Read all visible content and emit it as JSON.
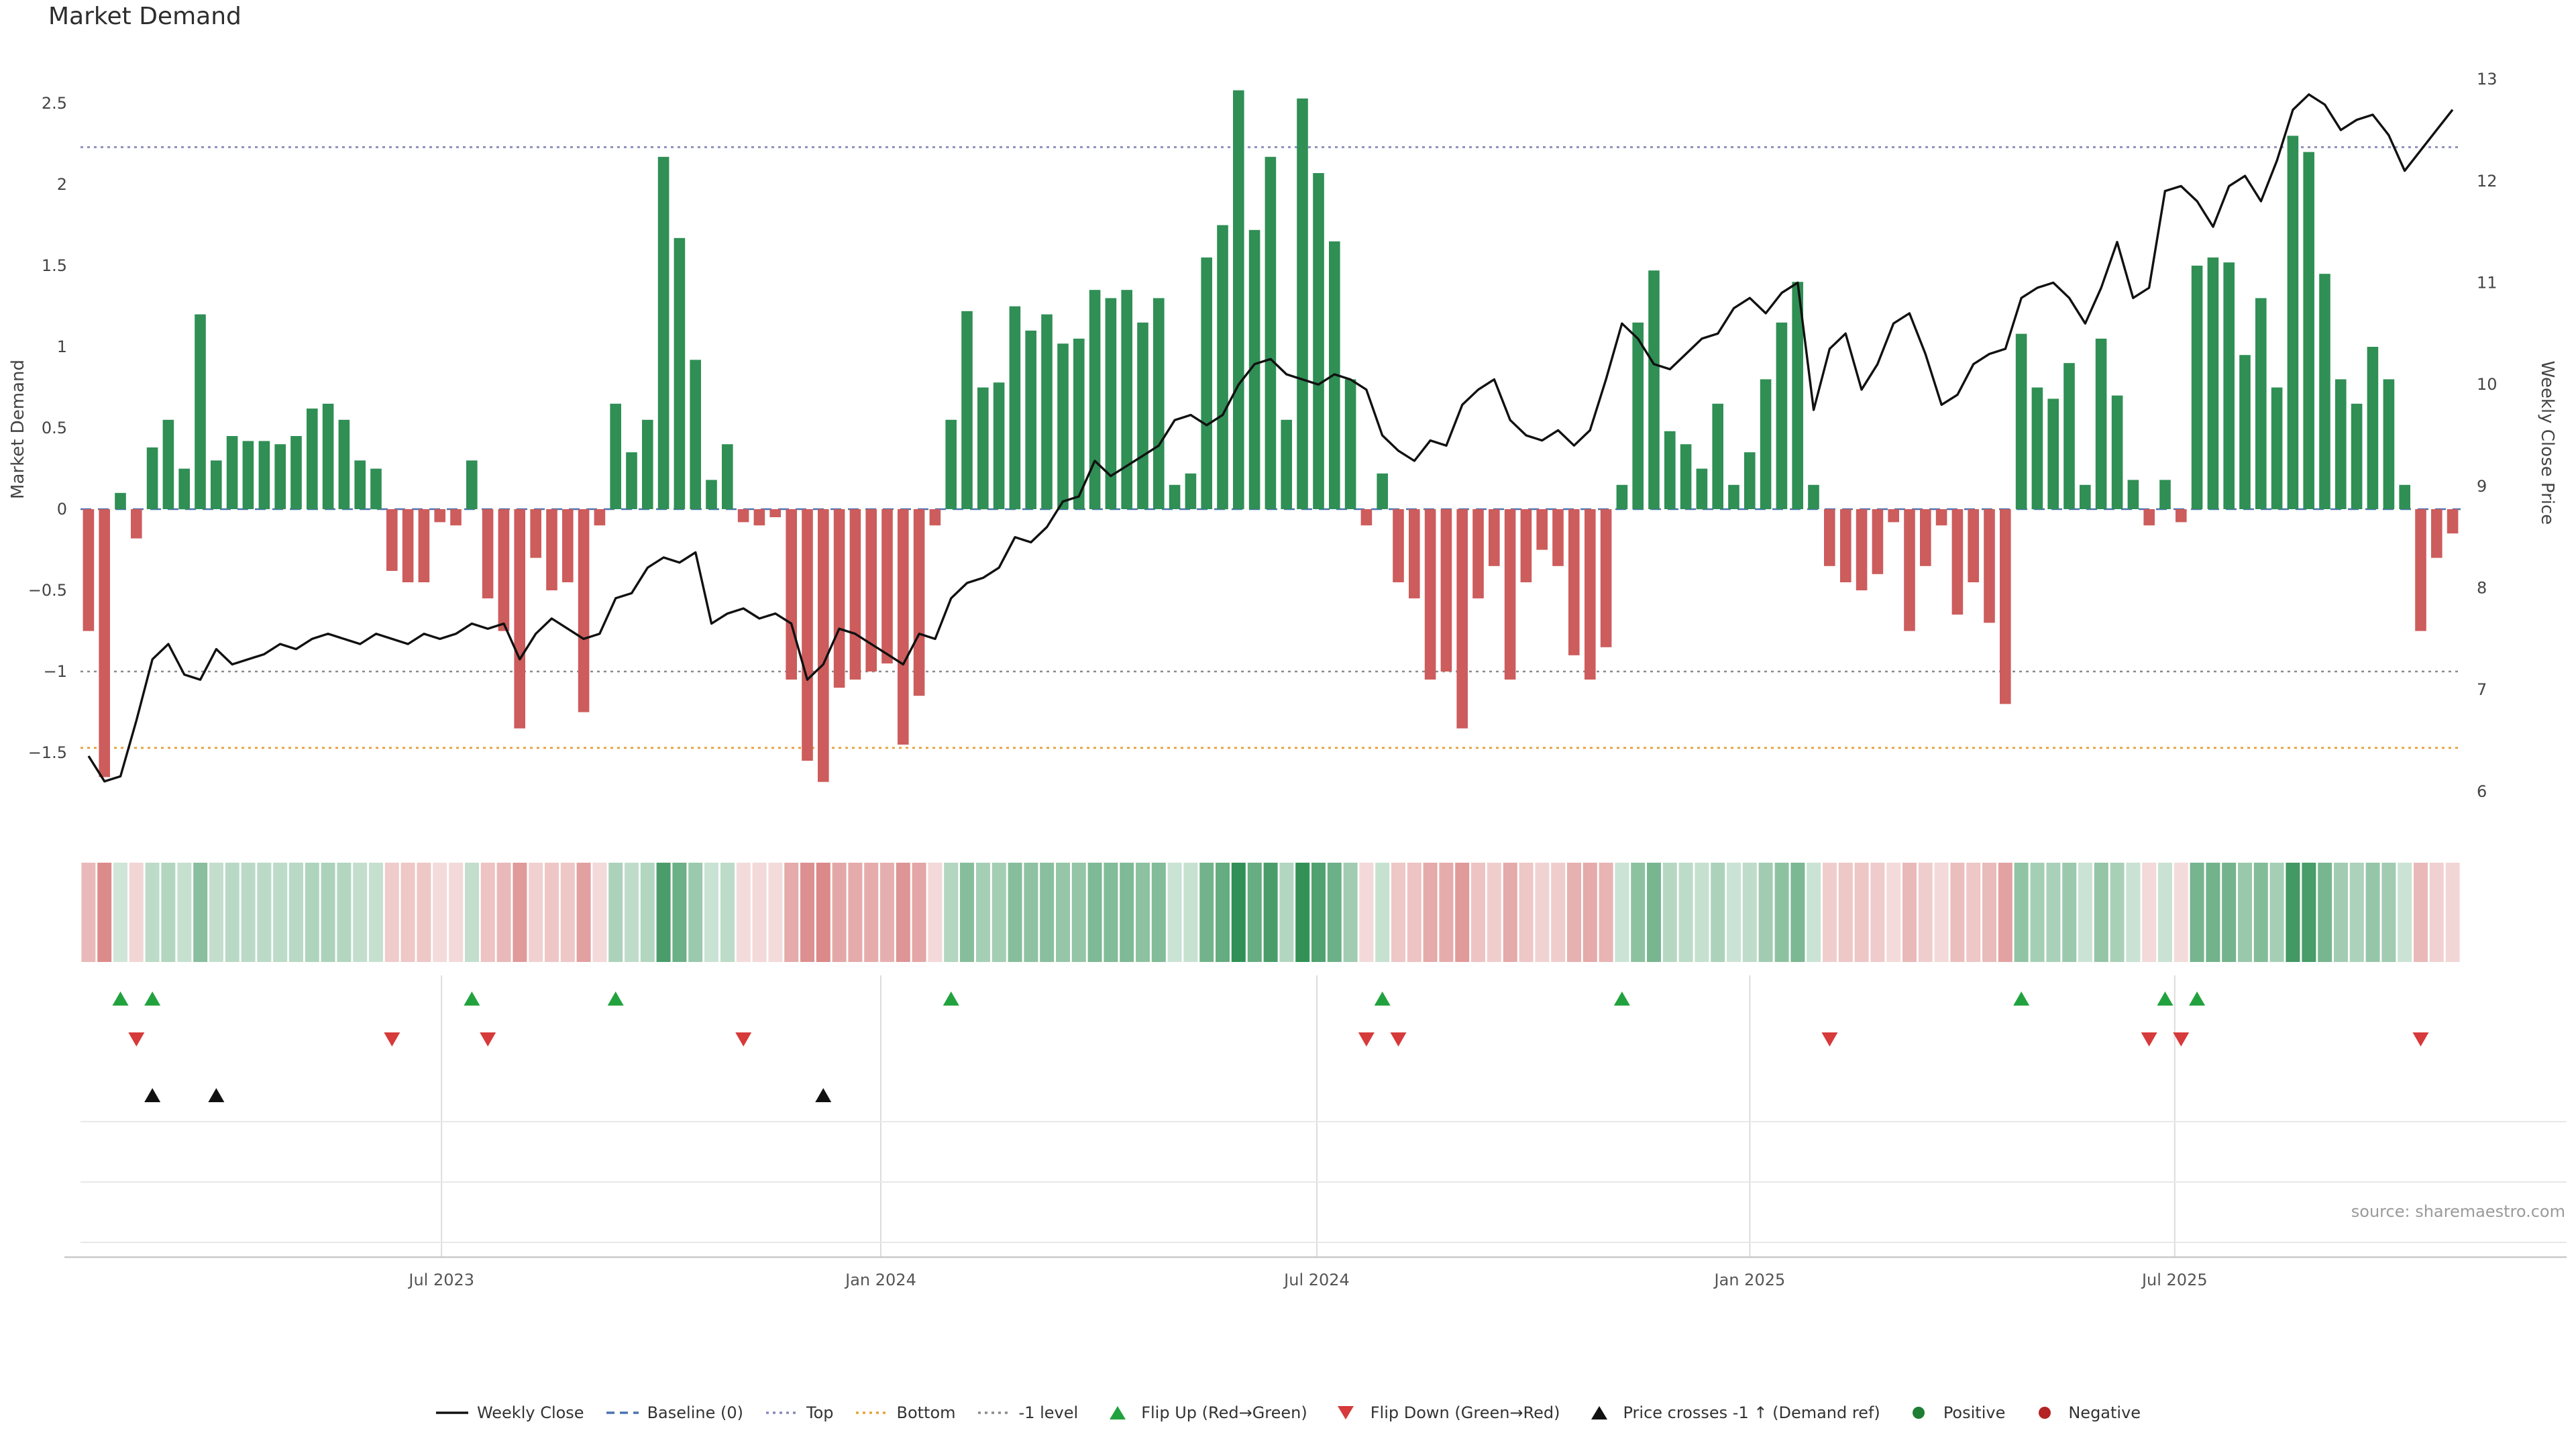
{
  "page": {
    "title": "Market Demand",
    "source": "source: sharemaestro.com"
  },
  "chart_data": {
    "type": "bar+line",
    "title": "Market Demand",
    "ylabel_left": "Market Demand",
    "ylabel_right": "Weekly Close Price",
    "x_unit": "week-index",
    "ylim_left": [
      -1.75,
      2.7
    ],
    "ylim_right": [
      5.95,
      13.1
    ],
    "yticks_left": [
      2.5,
      2,
      1.5,
      1,
      0.5,
      0,
      -0.5,
      -1,
      -1.5
    ],
    "yticks_right": [
      13,
      12,
      11,
      10,
      9,
      8,
      7,
      6
    ],
    "x_ticks": [
      {
        "label": "Jul 2023",
        "week": 22.1
      },
      {
        "label": "Jan 2024",
        "week": 49.6
      },
      {
        "label": "Jul 2024",
        "week": 76.9
      },
      {
        "label": "Jan 2025",
        "week": 104
      },
      {
        "label": "Jul 2025",
        "week": 130.6
      }
    ],
    "reference_lines": {
      "baseline": 0,
      "top": 2.23,
      "bottom": -1.47,
      "minus_one_level": -1
    },
    "layout_hints": {
      "legend_position": "bottom",
      "grid": "lower-panel-only",
      "heatmap_strip": true
    },
    "series": [
      {
        "name": "Market Demand",
        "type": "bar",
        "values": [
          -0.75,
          -1.65,
          0.1,
          -0.18,
          0.38,
          0.55,
          0.25,
          1.2,
          0.3,
          0.45,
          0.42,
          0.42,
          0.4,
          0.45,
          0.62,
          0.65,
          0.55,
          0.3,
          0.25,
          -0.38,
          -0.45,
          -0.45,
          -0.08,
          -0.1,
          0.3,
          -0.55,
          -0.75,
          -1.35,
          -0.3,
          -0.5,
          -0.45,
          -1.25,
          -0.1,
          0.65,
          0.35,
          0.55,
          2.17,
          1.67,
          0.92,
          0.18,
          0.4,
          -0.08,
          -0.1,
          -0.05,
          -1.05,
          -1.55,
          -1.68,
          -1.1,
          -1.05,
          -1.0,
          -0.95,
          -1.45,
          -1.15,
          -0.1,
          0.55,
          1.22,
          0.75,
          0.78,
          1.25,
          1.1,
          1.2,
          1.02,
          1.05,
          1.35,
          1.3,
          1.35,
          1.15,
          1.3,
          0.15,
          0.22,
          1.55,
          1.75,
          2.58,
          1.72,
          2.17,
          0.55,
          2.53,
          2.07,
          1.65,
          0.8,
          -0.1,
          0.22,
          -0.45,
          -0.55,
          -1.05,
          -1.0,
          -1.35,
          -0.55,
          -0.35,
          -1.05,
          -0.45,
          -0.25,
          -0.35,
          -0.9,
          -1.05,
          -0.85,
          0.15,
          1.15,
          1.47,
          0.48,
          0.4,
          0.25,
          0.65,
          0.15,
          0.35,
          0.8,
          1.15,
          1.4,
          0.15,
          -0.35,
          -0.45,
          -0.5,
          -0.4,
          -0.08,
          -0.75,
          -0.35,
          -0.1,
          -0.65,
          -0.45,
          -0.7,
          -1.2,
          1.08,
          0.75,
          0.68,
          0.9,
          0.15,
          1.05,
          0.7,
          0.18,
          -0.1,
          0.18,
          -0.08,
          1.5,
          1.55,
          1.52,
          0.95,
          1.3,
          0.75,
          2.3,
          2.2,
          1.45,
          0.8,
          0.65,
          1.0,
          0.8,
          0.15,
          -0.75,
          -0.3,
          -0.15
        ]
      },
      {
        "name": "Weekly Close",
        "type": "line",
        "values": [
          6.35,
          6.1,
          6.15,
          6.7,
          7.3,
          7.45,
          7.15,
          7.1,
          7.4,
          7.25,
          7.3,
          7.35,
          7.45,
          7.4,
          7.5,
          7.55,
          7.5,
          7.45,
          7.55,
          7.5,
          7.45,
          7.55,
          7.5,
          7.55,
          7.65,
          7.6,
          7.65,
          7.3,
          7.55,
          7.7,
          7.6,
          7.5,
          7.55,
          7.9,
          7.95,
          8.2,
          8.3,
          8.25,
          8.35,
          7.65,
          7.75,
          7.8,
          7.7,
          7.75,
          7.65,
          7.1,
          7.25,
          7.6,
          7.55,
          7.45,
          7.35,
          7.25,
          7.55,
          7.5,
          7.9,
          8.05,
          8.1,
          8.2,
          8.5,
          8.45,
          8.6,
          8.85,
          8.9,
          9.25,
          9.1,
          9.2,
          9.3,
          9.4,
          9.65,
          9.7,
          9.6,
          9.7,
          10.0,
          10.2,
          10.25,
          10.1,
          10.05,
          10.0,
          10.1,
          10.05,
          9.95,
          9.5,
          9.35,
          9.25,
          9.45,
          9.4,
          9.8,
          9.95,
          10.05,
          9.65,
          9.5,
          9.45,
          9.55,
          9.4,
          9.55,
          10.05,
          10.6,
          10.45,
          10.2,
          10.15,
          10.3,
          10.45,
          10.5,
          10.75,
          10.85,
          10.7,
          10.9,
          11.0,
          9.75,
          10.35,
          10.5,
          9.95,
          10.2,
          10.6,
          10.7,
          10.3,
          9.8,
          9.9,
          10.2,
          10.3,
          10.35,
          10.85,
          10.95,
          11.0,
          10.85,
          10.6,
          10.95,
          11.4,
          10.85,
          10.95,
          11.9,
          11.95,
          11.8,
          11.55,
          11.95,
          12.05,
          11.8,
          12.2,
          12.7,
          12.85,
          12.75,
          12.5,
          12.6,
          12.65,
          12.45,
          12.1,
          12.3,
          12.5,
          12.7
        ]
      }
    ],
    "colors": {
      "positive": "#2f8f54",
      "negative": "#cd5c5c",
      "price_line": "#111111",
      "baseline": "#4c72b0",
      "top": "#8888bb",
      "bottom": "#e5a23c",
      "minus_one": "#8a8a8a",
      "flip_up": "#22a23f",
      "flip_down": "#d63a3a",
      "price_cross": "#111111"
    }
  },
  "legend": {
    "items": [
      {
        "slug": "weekly-close",
        "label": "Weekly Close",
        "type": "line",
        "color": "#111111",
        "dash": ""
      },
      {
        "slug": "baseline",
        "label": "Baseline (0)",
        "type": "line",
        "color": "#4c72b0",
        "dash": "6,4"
      },
      {
        "slug": "top",
        "label": "Top",
        "type": "line",
        "color": "#8888bb",
        "dash": "2,3"
      },
      {
        "slug": "bottom",
        "label": "Bottom",
        "type": "line",
        "color": "#e5a23c",
        "dash": "2,3"
      },
      {
        "slug": "minus-1-level",
        "label": "-1 level",
        "type": "line",
        "color": "#8a8a8a",
        "dash": "2,3"
      },
      {
        "slug": "flip-up",
        "label": "Flip Up (Red→Green)",
        "type": "triangle-up",
        "color": "#22a23f"
      },
      {
        "slug": "flip-down",
        "label": "Flip Down (Green→Red)",
        "type": "triangle-down",
        "color": "#d63a3a"
      },
      {
        "slug": "price-crosses-minus-1",
        "label": "Price crosses -1 ↑ (Demand ref)",
        "type": "triangle-up",
        "color": "#111111"
      },
      {
        "slug": "positive",
        "label": "Positive",
        "type": "dot",
        "color": "#1e7e34"
      },
      {
        "slug": "negative",
        "label": "Negative",
        "type": "dot",
        "color": "#b42424"
      }
    ]
  }
}
